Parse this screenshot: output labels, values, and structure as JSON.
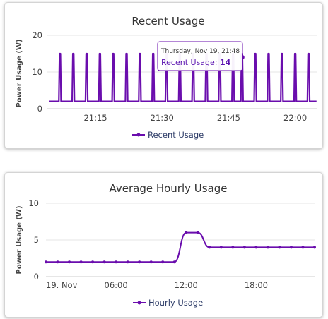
{
  "colors": {
    "series": "#6a0dad",
    "grid": "#e6e6e6",
    "axis": "#cccccc"
  },
  "chart_data": [
    {
      "type": "line",
      "title": "Recent Usage",
      "ylabel": "Power Usage (W)",
      "xlabel": "",
      "ylim": [
        0,
        20
      ],
      "yticks": [
        0,
        10,
        20
      ],
      "xlim": [
        "21:04",
        "22:05"
      ],
      "xticks": [
        "21:15",
        "21:30",
        "21:45",
        "22:00"
      ],
      "grid": true,
      "legend": "bottom",
      "series": [
        {
          "name": "Recent Usage",
          "baseline": 2,
          "peak": 15,
          "spikes_at": [
            "21:07",
            "21:10",
            "21:13",
            "21:16",
            "21:19",
            "21:22",
            "21:25",
            "21:28",
            "21:31",
            "21:34",
            "21:37",
            "21:40",
            "21:43",
            "21:46",
            "21:48",
            "21:51",
            "21:54",
            "21:57",
            "22:00",
            "22:03"
          ]
        }
      ],
      "tooltip": {
        "date": "Thursday, Nov 19, 21:48",
        "label": "Recent Usage",
        "value": "14"
      }
    },
    {
      "type": "line",
      "title": "Average Hourly Usage",
      "ylabel": "Power Usage (W)",
      "xlabel": "",
      "ylim": [
        0,
        10
      ],
      "yticks": [
        0,
        5,
        10
      ],
      "xticks": [
        "19. Nov",
        "06:00",
        "12:00",
        "18:00"
      ],
      "grid": true,
      "legend": "bottom",
      "series": [
        {
          "name": "Hourly Usage",
          "x_hours": [
            0,
            1,
            2,
            3,
            4,
            5,
            6,
            7,
            8,
            9,
            10,
            11,
            12,
            13,
            14,
            15,
            16,
            17,
            18,
            19,
            20,
            21,
            22,
            23
          ],
          "values": [
            2,
            2,
            2,
            2,
            2,
            2,
            2,
            2,
            2,
            2,
            2,
            2,
            6,
            6,
            4,
            4,
            4,
            4,
            4,
            4,
            4,
            4,
            4,
            4
          ]
        }
      ]
    }
  ]
}
